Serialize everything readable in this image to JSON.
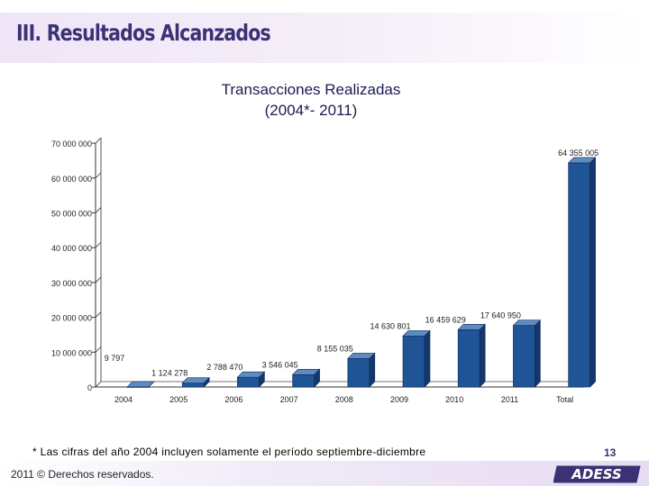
{
  "slide": {
    "title": "III. Resultados  Alcanzados",
    "footnote": "* Las cifras del año 2004 incluyen solamente el período septiembre-diciembre",
    "copyright": "2011 © Derechos reservados.",
    "page_number": "13",
    "logo_text": "ADESS"
  },
  "colors": {
    "bar": "#1f5596",
    "bar_top": "#5d8bc2",
    "bar_side": "#14386a",
    "title": "#3b3175"
  },
  "chart_data": {
    "type": "bar",
    "title": "Transacciones Realizadas",
    "subtitle": "(2004*- 2011)",
    "categories": [
      "2004",
      "2005",
      "2006",
      "2007",
      "2008",
      "2009",
      "2010",
      "2011",
      "Total"
    ],
    "values": [
      9797,
      1124278,
      2788470,
      3546045,
      8155035,
      14630801,
      16459629,
      17640950,
      64355005
    ],
    "data_labels": [
      "9 797",
      "1 124 278",
      "2 788 470",
      "3 546 045",
      "8 155 035",
      "14 630 801",
      "16 459 629",
      "17 640 950",
      "64 355 005"
    ],
    "ylim": [
      0,
      70000000
    ],
    "yticks": [
      0,
      10000000,
      20000000,
      30000000,
      40000000,
      50000000,
      60000000,
      70000000
    ],
    "ytick_labels": [
      "0",
      "10 000 000",
      "20 000 000",
      "30 000 000",
      "40 000 000",
      "50 000 000",
      "60 000 000",
      "70 000 000"
    ],
    "grid": false,
    "style": "3d-bar"
  }
}
